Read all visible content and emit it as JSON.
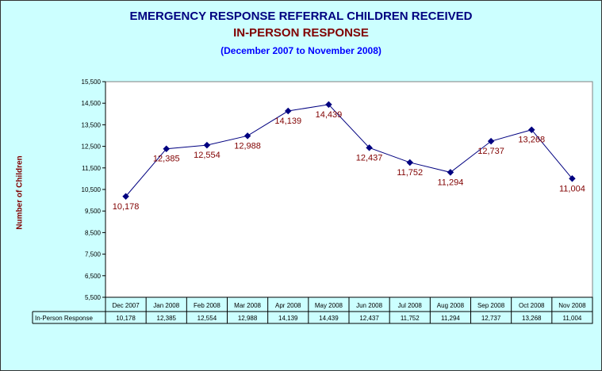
{
  "chart_data": {
    "type": "line",
    "title": "EMERGENCY RESPONSE REFERRAL CHILDREN RECEIVED",
    "subtitle": "IN-PERSON RESPONSE",
    "date_range": "(December 2007 to November 2008)",
    "ylabel": "Number of Children",
    "xlabel": "",
    "ylim": [
      5500,
      15500
    ],
    "yticks": [
      "5,500",
      "6,500",
      "7,500",
      "8,500",
      "9,500",
      "10,500",
      "11,500",
      "12,500",
      "13,500",
      "14,500",
      "15,500"
    ],
    "categories": [
      "Dec 2007",
      "Jan 2008",
      "Feb 2008",
      "Mar 2008",
      "Apr 2008",
      "May 2008",
      "Jun 2008",
      "Jul 2008",
      "Aug 2008",
      "Sep 2008",
      "Oct 2008",
      "Nov 2008"
    ],
    "series": [
      {
        "name": "In-Person Response",
        "values": [
          10178,
          12385,
          12554,
          12988,
          14139,
          14439,
          12437,
          11752,
          11294,
          12737,
          13268,
          11004
        ],
        "labels": [
          "10,178",
          "12,385",
          "12,554",
          "12,988",
          "14,139",
          "14,439",
          "12,437",
          "11,752",
          "11,294",
          "12,737",
          "13,268",
          "11,004"
        ]
      }
    ],
    "grid": false,
    "legend": "data table below x-axis",
    "colors": {
      "line": "#000080",
      "marker": "#000080",
      "data_label": "#800000",
      "plot_background": "#ffffff",
      "chart_background": "#ccffff"
    }
  }
}
